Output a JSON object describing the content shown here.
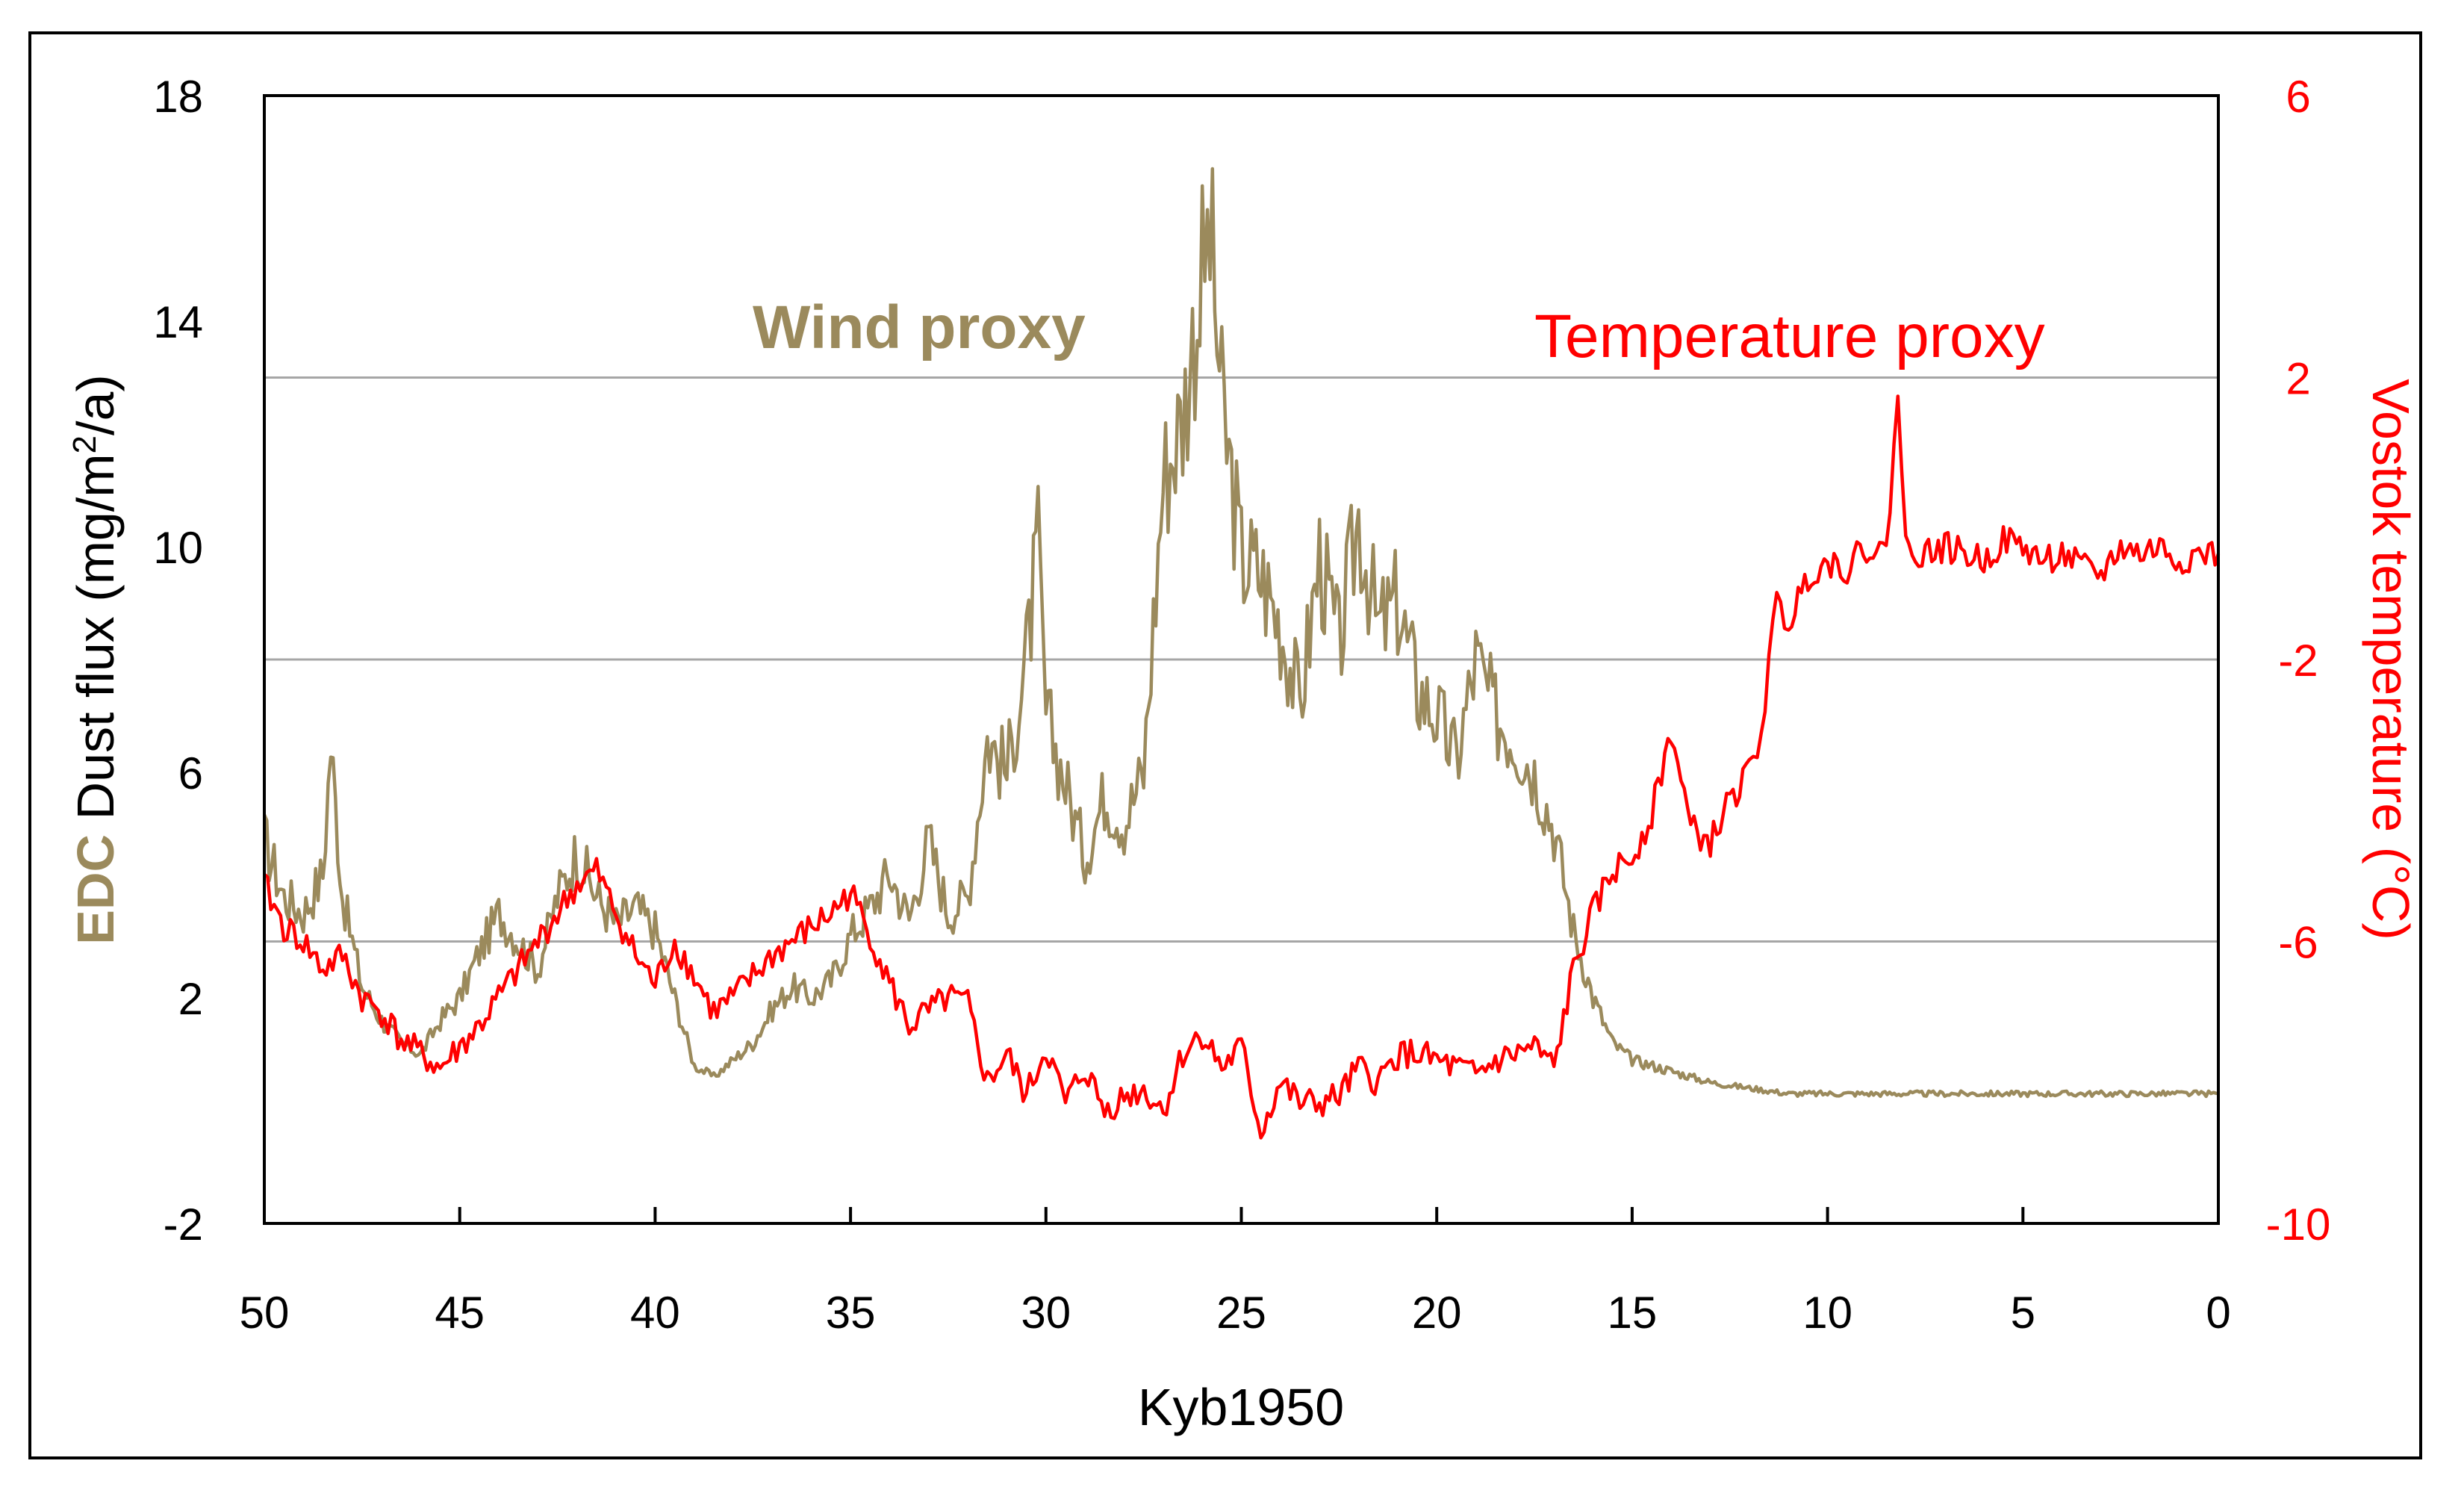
{
  "chart_data": {
    "type": "line",
    "title": "",
    "xlabel": "Kyb1950",
    "xlim": [
      50,
      0
    ],
    "x_ticks": [
      "50",
      "45",
      "40",
      "35",
      "30",
      "25",
      "20",
      "15",
      "10",
      "5",
      "0"
    ],
    "y_left": {
      "label_prefix": "EDC",
      "label_main": " Dust flux (mg/m",
      "label_sup": "2",
      "label_suffix": "/a)",
      "ylim": [
        -2,
        18
      ],
      "ticks": [
        "-2",
        "2",
        "6",
        "10",
        "14",
        "18"
      ],
      "color": "#9b8a5c"
    },
    "y_right": {
      "label": "Vostok temperature  (°C)",
      "ylim": [
        -10,
        6
      ],
      "ticks": [
        "-10",
        "-6",
        "-2",
        "2",
        "6"
      ],
      "color": "#ff0000"
    },
    "gridlines_left_values": [
      3,
      8,
      13
    ],
    "series": [
      {
        "name": "Wind proxy",
        "axis": "left",
        "color": "#9b8a5c",
        "x": [
          50,
          49.5,
          49,
          48.5,
          48.3,
          48,
          47.5,
          47,
          46.5,
          46,
          45.5,
          45,
          44.5,
          44,
          43.5,
          43,
          42.5,
          42,
          41.5,
          41,
          40.5,
          40,
          39.5,
          39,
          38.5,
          38,
          37.5,
          37,
          36.5,
          36,
          35.5,
          35,
          34.5,
          34,
          33.5,
          33,
          32.5,
          32,
          31.5,
          31,
          30.5,
          30.2,
          30,
          29.5,
          29,
          28.5,
          28,
          27.5,
          27,
          26.5,
          26,
          25.8,
          25.5,
          25,
          24.5,
          24,
          23.5,
          23,
          22.5,
          22,
          21.5,
          21,
          20.5,
          20,
          19.5,
          19,
          18.5,
          18,
          17.5,
          17,
          16.5,
          16,
          15.5,
          15,
          14,
          13,
          12,
          11,
          10,
          9,
          8,
          7,
          6,
          5,
          4,
          3,
          2,
          1,
          0.5,
          0
        ],
        "values": [
          4.8,
          3.8,
          3.5,
          4.2,
          6.5,
          3.8,
          2.2,
          1.6,
          1.2,
          1.0,
          1.6,
          2.0,
          2.8,
          3.5,
          3.0,
          2.5,
          3.8,
          4.6,
          3.8,
          3.3,
          3.6,
          3.2,
          2.0,
          0.8,
          0.6,
          0.9,
          1.2,
          1.8,
          2.2,
          2.0,
          2.3,
          3.1,
          3.6,
          4.2,
          3.4,
          4.8,
          3.5,
          3.8,
          6.6,
          6.0,
          8.0,
          10.0,
          7.0,
          5.8,
          4.5,
          5.6,
          5.1,
          6.0,
          11.2,
          12.3,
          14.8,
          15.6,
          12.5,
          9.8,
          9.5,
          8.6,
          7.2,
          9.8,
          8.2,
          10.5,
          8.5,
          9.0,
          7.5,
          7.0,
          6.2,
          8.0,
          7.0,
          6.6,
          6.0,
          5.0,
          3.2,
          2.0,
          1.2,
          0.9,
          0.7,
          0.5,
          0.4,
          0.3,
          0.3,
          0.3,
          0.3,
          0.3,
          0.3,
          0.3,
          0.3,
          0.3,
          0.3,
          0.3,
          0.3,
          0.3
        ]
      },
      {
        "name": "Temperature proxy",
        "axis": "right",
        "color": "#ff0000",
        "x": [
          50,
          49.5,
          49,
          48.5,
          48,
          47.5,
          47,
          46.5,
          46,
          45.5,
          45,
          44.5,
          44,
          43.5,
          43,
          42.5,
          42,
          41.5,
          41,
          40.5,
          40,
          39.5,
          39,
          38.5,
          38,
          37.5,
          37,
          36.5,
          36,
          35.5,
          35,
          34.5,
          34,
          33.5,
          33,
          32.5,
          32,
          31.5,
          31,
          30.5,
          30,
          29.5,
          29,
          28.5,
          28,
          27.5,
          27,
          26.5,
          26,
          25.5,
          25,
          24.5,
          24,
          23.5,
          23,
          22.5,
          22,
          21.5,
          21,
          20.5,
          20,
          19.5,
          19,
          18.5,
          18,
          17.5,
          17,
          16.5,
          16,
          15.5,
          15,
          14.5,
          14,
          13.5,
          13,
          12.5,
          12,
          11.7,
          11.3,
          11,
          10.5,
          10,
          9.5,
          9,
          8.5,
          8.2,
          8,
          7.5,
          7,
          6.5,
          6,
          5.5,
          5,
          4.5,
          4,
          3.5,
          3,
          2.5,
          2,
          1.5,
          1,
          0.5,
          0
        ],
        "values": [
          -5.2,
          -5.8,
          -6.0,
          -6.4,
          -6.2,
          -6.8,
          -7.0,
          -7.4,
          -7.6,
          -7.8,
          -7.5,
          -7.2,
          -6.8,
          -6.4,
          -6.0,
          -5.6,
          -5.2,
          -5.0,
          -5.6,
          -6.2,
          -6.6,
          -6.0,
          -6.5,
          -7.0,
          -6.8,
          -6.5,
          -6.2,
          -6.0,
          -5.8,
          -5.6,
          -5.3,
          -5.9,
          -6.6,
          -7.2,
          -7.0,
          -6.8,
          -6.9,
          -8.0,
          -7.6,
          -8.2,
          -7.5,
          -8.3,
          -7.8,
          -8.4,
          -8.2,
          -8.1,
          -8.4,
          -7.6,
          -7.3,
          -7.8,
          -7.5,
          -8.7,
          -8.0,
          -8.3,
          -8.3,
          -8.2,
          -7.8,
          -8.0,
          -7.6,
          -7.6,
          -7.7,
          -7.8,
          -7.9,
          -7.7,
          -7.6,
          -7.5,
          -7.8,
          -6.4,
          -5.6,
          -5.0,
          -4.8,
          -4.2,
          -3.0,
          -4.4,
          -4.6,
          -4.0,
          -3.6,
          -3.0,
          -1.2,
          -1.5,
          -0.8,
          -0.6,
          -0.7,
          -0.4,
          -0.5,
          1.8,
          -0.4,
          -0.5,
          -0.4,
          -0.5,
          -0.6,
          -0.3,
          -0.4,
          -0.6,
          -0.5,
          -0.7,
          -0.8,
          -0.4,
          -0.5,
          -0.4,
          -0.6,
          -0.5,
          -0.5
        ]
      }
    ],
    "annotations": [
      {
        "text": "Wind proxy",
        "color": "#9b8a5c",
        "x": 29.5,
        "y_left": 14.2
      },
      {
        "text": "Temperature proxy",
        "color": "#ff0000",
        "x": 11.0,
        "y_left": 14.2
      }
    ]
  }
}
